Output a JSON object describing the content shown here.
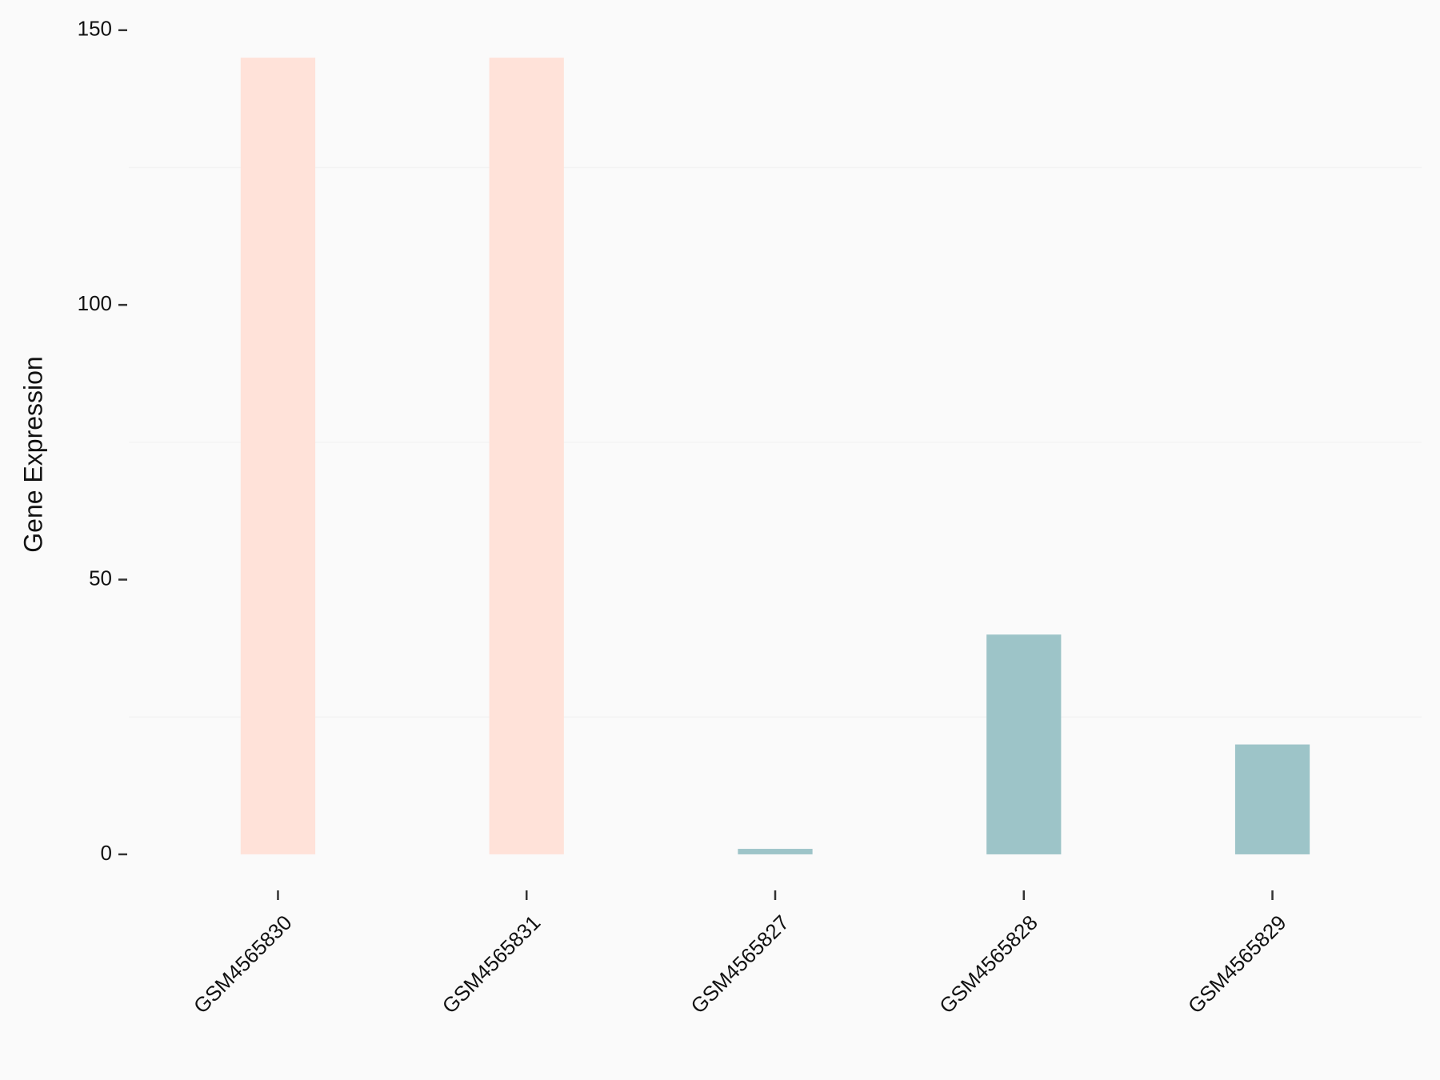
{
  "chart_data": {
    "type": "bar",
    "y_label": "Gene Expression",
    "categories": [
      "GSM4565830",
      "GSM4565831",
      "GSM4565827",
      "GSM4565828",
      "GSM4565829"
    ],
    "values": [
      145,
      145,
      1,
      40,
      20
    ],
    "colors": [
      "#ffe2d9",
      "#ffe2d9",
      "#9dc4c8",
      "#9dc4c8",
      "#9dc4c8"
    ],
    "ylim": [
      -7,
      152
    ],
    "yticks": [
      0,
      50,
      100,
      150
    ],
    "minor_yticks": [
      25,
      75,
      125
    ],
    "grid": true
  }
}
